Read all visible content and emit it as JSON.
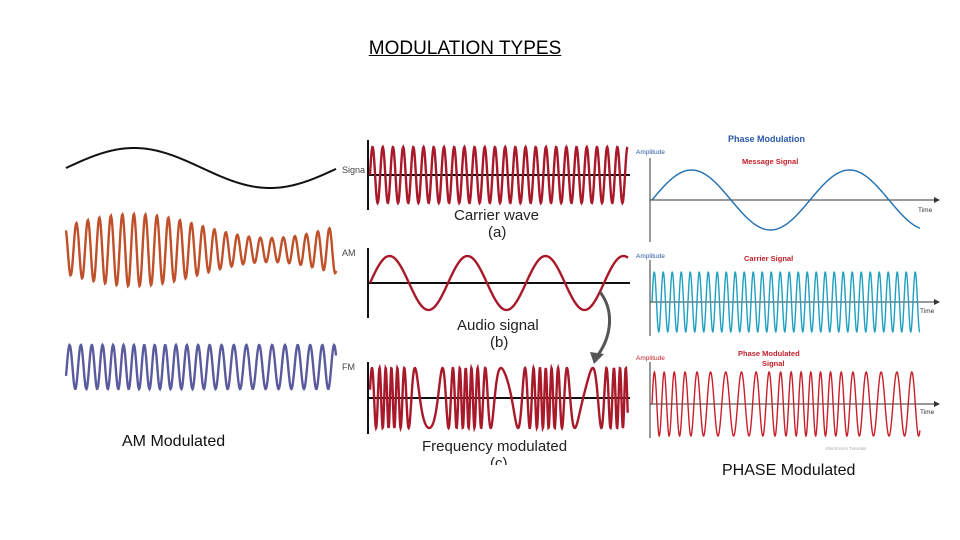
{
  "slide": {
    "title": "MODULATION TYPES"
  },
  "captions": {
    "am": "AM  Modulated",
    "phase": "PHASE Modulated"
  },
  "left_figure": {
    "signal_label": "Signa",
    "am_label": "AM",
    "fm_label": "FM",
    "colors": {
      "signal": "#111111",
      "am": "#c0502a",
      "fm": "#5a5a9e"
    }
  },
  "middle_figure": {
    "carrier_label": "Carrier wave",
    "carrier_tag": "(a)",
    "audio_label": "Audio signal",
    "audio_tag": "(b)",
    "fm_label": "Frequency modulated",
    "fm_tag": "(c)",
    "wave_color": "#a8192a"
  },
  "right_figure": {
    "title": "Phase Modulation",
    "message_label": "Message Signal",
    "carrier_label": "Carrier Signal",
    "pm_label_line1": "Phase Modulated",
    "pm_label_line2": "Signal",
    "amplitude_label": "Amplitude",
    "time_label": "Time",
    "watermark": "Electronics Tutorials",
    "colors": {
      "message": "#1f6fb2",
      "carrier": "#1fa0c0",
      "pm": "#c8202a",
      "title": "#2a58a8"
    }
  }
}
